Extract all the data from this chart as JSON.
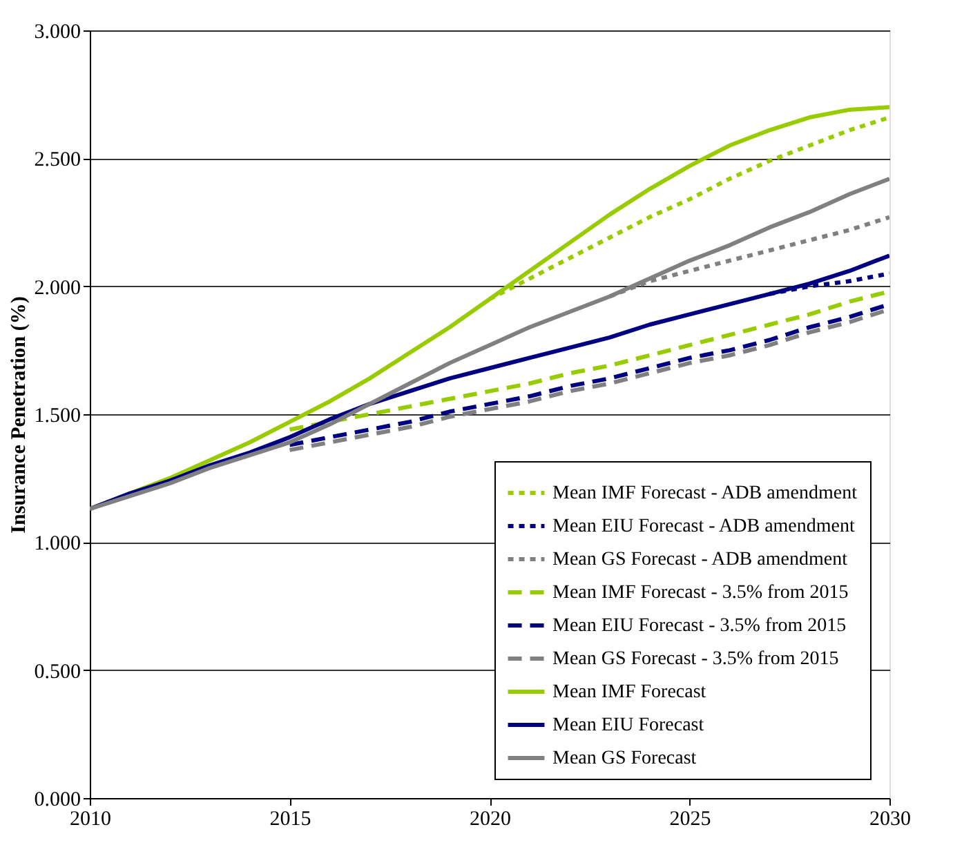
{
  "chart_data": {
    "type": "line",
    "ylabel": "Insurance Penetration (%)",
    "xlim": [
      2010,
      2030
    ],
    "xticks": [
      2010,
      2015,
      2020,
      2025,
      2030
    ],
    "ylim": [
      0,
      3
    ],
    "yticks": [
      {
        "value": 0,
        "label": "0.000"
      },
      {
        "value": 0.5,
        "label": "0.500"
      },
      {
        "value": 1,
        "label": "1.000"
      },
      {
        "value": 1.5,
        "label": "1.500"
      },
      {
        "value": 2,
        "label": "2.000"
      },
      {
        "value": 2.5,
        "label": "2.500"
      },
      {
        "value": 3,
        "label": "3.000"
      }
    ],
    "grid": "y",
    "legend": "bottom right",
    "series": [
      {
        "name": "Mean IMF Forecast - ADB amendment",
        "color": "#99cc00",
        "line_style": "dotted",
        "x": [
          2020,
          2021,
          2022,
          2023,
          2024,
          2025,
          2026,
          2027,
          2028,
          2029,
          2030
        ],
        "values": [
          1.95,
          2.03,
          2.11,
          2.19,
          2.27,
          2.34,
          2.42,
          2.49,
          2.55,
          2.61,
          2.66
        ]
      },
      {
        "name": "Mean EIU Forecast - ADB amendment",
        "color": "#000080",
        "line_style": "dotted",
        "x": [
          2027,
          2028,
          2029,
          2030
        ],
        "values": [
          1.97,
          2.0,
          2.02,
          2.05
        ]
      },
      {
        "name": "Mean GS Forecast - ADB amendment",
        "color": "#808080",
        "line_style": "dotted",
        "x": [
          2023,
          2024,
          2025,
          2026,
          2027,
          2028,
          2029,
          2030
        ],
        "values": [
          1.96,
          2.02,
          2.06,
          2.1,
          2.14,
          2.18,
          2.22,
          2.27
        ]
      },
      {
        "name": "Mean IMF Forecast - 3.5% from 2015",
        "color": "#99cc00",
        "line_style": "dashed",
        "x": [
          2015,
          2016,
          2017,
          2018,
          2019,
          2020,
          2021,
          2022,
          2023,
          2024,
          2025,
          2026,
          2027,
          2028,
          2029,
          2030
        ],
        "values": [
          1.44,
          1.47,
          1.5,
          1.53,
          1.56,
          1.59,
          1.62,
          1.66,
          1.69,
          1.73,
          1.77,
          1.81,
          1.85,
          1.89,
          1.94,
          1.98
        ]
      },
      {
        "name": "Mean EIU Forecast - 3.5% from 2015",
        "color": "#000080",
        "line_style": "dashed",
        "x": [
          2015,
          2016,
          2017,
          2018,
          2019,
          2020,
          2021,
          2022,
          2023,
          2024,
          2025,
          2026,
          2027,
          2028,
          2029,
          2030
        ],
        "values": [
          1.38,
          1.41,
          1.44,
          1.47,
          1.51,
          1.54,
          1.57,
          1.61,
          1.64,
          1.68,
          1.72,
          1.75,
          1.79,
          1.84,
          1.88,
          1.93
        ]
      },
      {
        "name": "Mean GS Forecast - 3.5% from 2015",
        "color": "#808080",
        "line_style": "dashed",
        "x": [
          2015,
          2016,
          2017,
          2018,
          2019,
          2020,
          2021,
          2022,
          2023,
          2024,
          2025,
          2026,
          2027,
          2028,
          2029,
          2030
        ],
        "values": [
          1.36,
          1.39,
          1.42,
          1.45,
          1.49,
          1.52,
          1.55,
          1.59,
          1.62,
          1.66,
          1.7,
          1.73,
          1.77,
          1.82,
          1.86,
          1.91
        ]
      },
      {
        "name": "Mean IMF Forecast",
        "color": "#99cc00",
        "line_style": "solid",
        "x": [
          2010,
          2011,
          2012,
          2013,
          2014,
          2015,
          2016,
          2017,
          2018,
          2019,
          2020,
          2021,
          2022,
          2023,
          2024,
          2025,
          2026,
          2027,
          2028,
          2029,
          2030
        ],
        "values": [
          1.13,
          1.19,
          1.25,
          1.32,
          1.39,
          1.47,
          1.55,
          1.64,
          1.74,
          1.84,
          1.95,
          2.06,
          2.17,
          2.28,
          2.38,
          2.47,
          2.55,
          2.61,
          2.66,
          2.69,
          2.7
        ]
      },
      {
        "name": "Mean EIU Forecast",
        "color": "#000080",
        "line_style": "solid",
        "x": [
          2010,
          2011,
          2012,
          2013,
          2014,
          2015,
          2016,
          2017,
          2018,
          2019,
          2020,
          2021,
          2022,
          2023,
          2024,
          2025,
          2026,
          2027,
          2028,
          2029,
          2030
        ],
        "values": [
          1.13,
          1.19,
          1.24,
          1.3,
          1.35,
          1.41,
          1.48,
          1.54,
          1.59,
          1.64,
          1.68,
          1.72,
          1.76,
          1.8,
          1.85,
          1.89,
          1.93,
          1.97,
          2.01,
          2.06,
          2.12
        ]
      },
      {
        "name": "Mean GS Forecast",
        "color": "#808080",
        "line_style": "solid",
        "x": [
          2010,
          2011,
          2012,
          2013,
          2014,
          2015,
          2016,
          2017,
          2018,
          2019,
          2020,
          2021,
          2022,
          2023,
          2024,
          2025,
          2026,
          2027,
          2028,
          2029,
          2030
        ],
        "values": [
          1.13,
          1.18,
          1.23,
          1.29,
          1.34,
          1.39,
          1.46,
          1.54,
          1.62,
          1.7,
          1.77,
          1.84,
          1.9,
          1.96,
          2.03,
          2.1,
          2.16,
          2.23,
          2.29,
          2.36,
          2.42
        ]
      }
    ]
  }
}
